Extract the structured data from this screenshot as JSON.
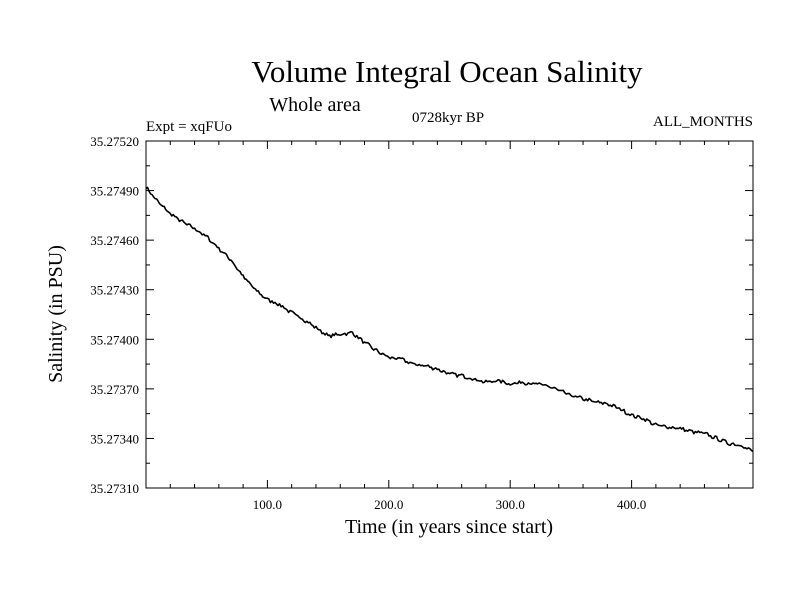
{
  "chart_data": {
    "type": "line",
    "title": "Volume Integral Ocean Salinity",
    "subtitle": "Whole area",
    "left_label": "Expt = xqFUo",
    "center_label": "0728kyr BP",
    "right_label": "ALL_MONTHS",
    "xlabel": "Time (in years since start)",
    "ylabel": "Salinity (in PSU)",
    "xlim": [
      0,
      500
    ],
    "ylim": [
      35.2731,
      35.2752
    ],
    "x_ticks": [
      100,
      200,
      300,
      400
    ],
    "x_tick_labels": [
      "100.0",
      "200.0",
      "300.0",
      "400.0"
    ],
    "y_ticks": [
      35.2731,
      35.2734,
      35.2737,
      35.274,
      35.2743,
      35.2746,
      35.2749,
      35.2752
    ],
    "y_tick_labels": [
      "35.27310",
      "35.27340",
      "35.27370",
      "35.27400",
      "35.27430",
      "35.27460",
      "35.27490",
      "35.27520"
    ],
    "grid": false,
    "series": [
      {
        "name": "salinity",
        "color": "#000000",
        "x": [
          0,
          10,
          20,
          30,
          40,
          50,
          60,
          70,
          80,
          90,
          100,
          110,
          120,
          130,
          140,
          150,
          160,
          170,
          180,
          190,
          200,
          210,
          220,
          230,
          240,
          250,
          260,
          270,
          280,
          290,
          300,
          310,
          320,
          330,
          340,
          350,
          360,
          370,
          380,
          390,
          400,
          410,
          420,
          430,
          440,
          450,
          460,
          470,
          480,
          490,
          500
        ],
        "y": [
          35.27492,
          35.27483,
          35.27476,
          35.27471,
          35.27467,
          35.27462,
          35.27455,
          35.27448,
          35.27438,
          35.2743,
          35.27424,
          35.27421,
          35.27416,
          35.27412,
          35.27407,
          35.27402,
          35.27403,
          35.27404,
          35.27398,
          35.27393,
          35.27389,
          35.27388,
          35.27385,
          35.27384,
          35.27382,
          35.27379,
          35.27378,
          35.27376,
          35.27374,
          35.27375,
          35.27373,
          35.27374,
          35.27373,
          35.27372,
          35.27369,
          35.27366,
          35.27364,
          35.27362,
          35.27361,
          35.27358,
          35.27354,
          35.27352,
          35.27348,
          35.27347,
          35.27346,
          35.27344,
          35.27343,
          35.2734,
          35.27337,
          35.27336,
          35.27332
        ]
      }
    ]
  }
}
